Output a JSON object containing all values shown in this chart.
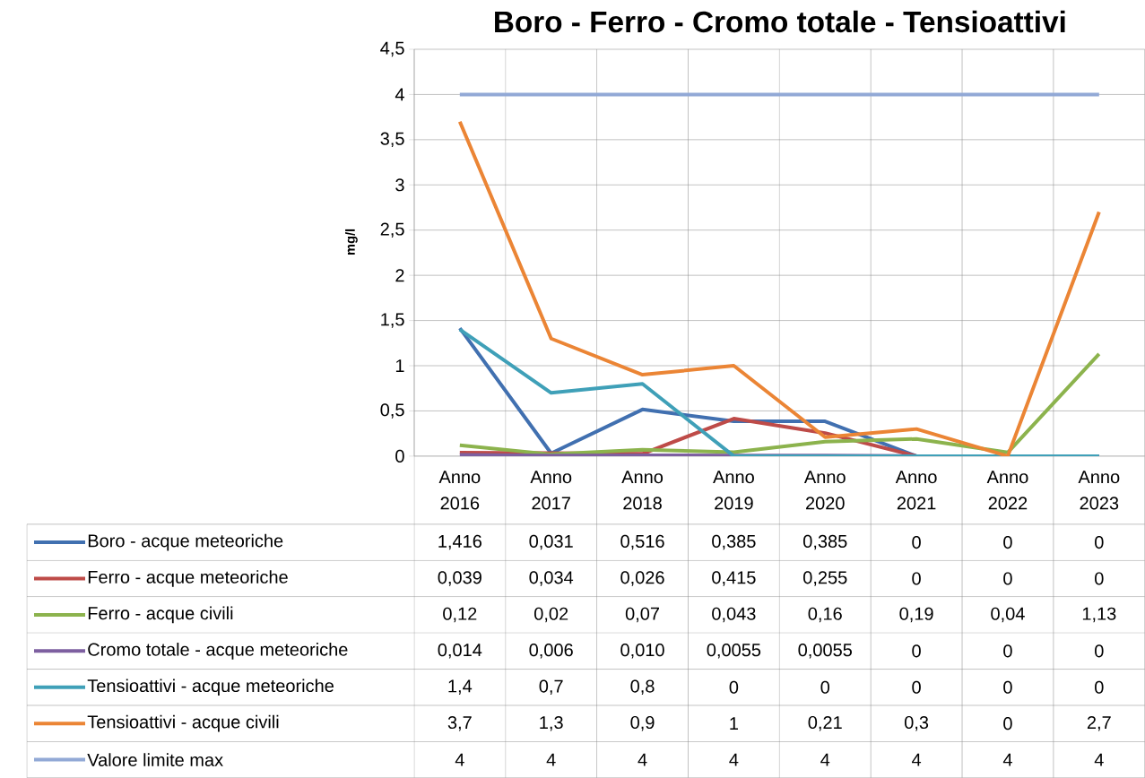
{
  "chart_data": {
    "type": "line",
    "title": "Boro - Ferro - Cromo totale - Tensioattivi",
    "ylabel": "mg/l",
    "categories": [
      "Anno 2016",
      "Anno 2017",
      "Anno 2018",
      "Anno 2019",
      "Anno 2020",
      "Anno 2021",
      "Anno 2022",
      "Anno 2023"
    ],
    "ylim": [
      0,
      4.5
    ],
    "yticks": [
      0,
      {
        "value": 0.5,
        "label": "0,5"
      },
      1,
      {
        "value": 1.5,
        "label": "1,5"
      },
      2,
      {
        "value": 2.5,
        "label": "2,5"
      },
      3,
      {
        "value": 3.5,
        "label": "3,5"
      },
      4,
      {
        "value": 4.5,
        "label": "4,5"
      }
    ],
    "grid": "y",
    "marker": "none",
    "legend": "bottom",
    "series": [
      {
        "name": "Boro - acque meteoriche",
        "color": "#4170b0",
        "values": [
          1.416,
          0.031,
          0.516,
          0.385,
          0.385,
          0,
          0,
          0
        ],
        "value_labels": [
          "1,416",
          "0,031",
          "0,516",
          "0,385",
          "0,385",
          "0",
          "0",
          "0"
        ]
      },
      {
        "name": "Ferro - acque meteoriche",
        "color": "#be4b48",
        "values": [
          0.039,
          0.034,
          0.026,
          0.415,
          0.255,
          0,
          0,
          0
        ],
        "value_labels": [
          "0,039",
          "0,034",
          "0,026",
          "0,415",
          "0,255",
          "0",
          "0",
          "0"
        ]
      },
      {
        "name": "Ferro - acque civili",
        "color": "#8cb34d",
        "values": [
          0.12,
          0.02,
          0.07,
          0.043,
          0.16,
          0.19,
          0.04,
          1.13
        ],
        "value_labels": [
          "0,12",
          "0,02",
          "0,07",
          "0,043",
          "0,16",
          "0,19",
          "0,04",
          "1,13"
        ]
      },
      {
        "name": "Cromo totale - acque meteoriche",
        "color": "#7d5fa0",
        "values": [
          0.014,
          0.006,
          0.01,
          0.0055,
          0.0055,
          0,
          0,
          0
        ],
        "value_labels": [
          "0,014",
          "0,006",
          "0,010",
          "0,0055",
          "0,0055",
          "0",
          "0",
          "0"
        ]
      },
      {
        "name": "Tensioattivi - acque meteoriche",
        "color": "#3fa0b8",
        "values": [
          1.4,
          0.7,
          0.8,
          0,
          0,
          0,
          0,
          0
        ],
        "value_labels": [
          "1,4",
          "0,7",
          "0,8",
          "0",
          "0",
          "0",
          "0",
          "0"
        ]
      },
      {
        "name": "Tensioattivi - acque civili",
        "color": "#eb8535",
        "values": [
          3.7,
          1.3,
          0.9,
          1,
          0.21,
          0.3,
          0,
          2.7
        ],
        "value_labels": [
          "3,7",
          "1,3",
          "0,9",
          "1",
          "0,21",
          "0,3",
          "0",
          "2,7"
        ]
      },
      {
        "name": "Valore limite max",
        "color": "#92a9d6",
        "values": [
          4,
          4,
          4,
          4,
          4,
          4,
          4,
          4
        ],
        "value_labels": [
          "4",
          "4",
          "4",
          "4",
          "4",
          "4",
          "4",
          "4"
        ]
      }
    ]
  }
}
